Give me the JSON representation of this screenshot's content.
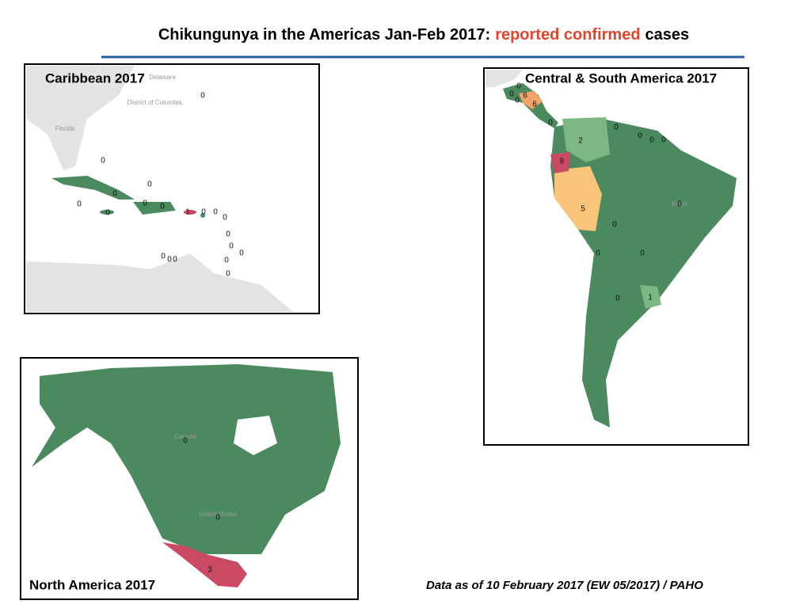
{
  "title": {
    "before": "Chikungunya in the Americas Jan-Feb 2017:",
    "highlight": "reported confirmed",
    "after": "cases"
  },
  "panels": [
    {
      "title": "Caribbean 2017",
      "place_names": [
        "Florida",
        "District of Columbia",
        "Delaware"
      ],
      "values": [
        0,
        0,
        0,
        0,
        0,
        0,
        0,
        0,
        1,
        0,
        0,
        0,
        0,
        0,
        0,
        0,
        0,
        0,
        0,
        0
      ]
    },
    {
      "title": "Central & South America 2017",
      "place_names": [
        "Brazil"
      ],
      "values": [
        0,
        0,
        6,
        0,
        6,
        0,
        0,
        0,
        0,
        0,
        2,
        9,
        5,
        0,
        0,
        0,
        0,
        0,
        1
      ]
    },
    {
      "title": "North America 2017",
      "place_names": [
        "Canada",
        "United States"
      ],
      "values": [
        0,
        0,
        3
      ]
    }
  ],
  "source": "Data as of 10 February 2017 (EW 05/2017) / PAHO"
}
